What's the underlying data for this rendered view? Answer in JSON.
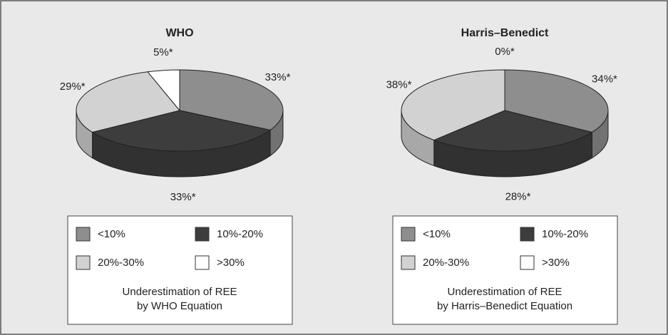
{
  "chart_data": [
    {
      "type": "pie",
      "title": "WHO",
      "categories": [
        "<10%",
        "10%-20%",
        "20%-30%",
        ">30%"
      ],
      "values": [
        33,
        33,
        29,
        5
      ],
      "value_labels": [
        "33%*",
        "33%*",
        "29%*",
        "5%*"
      ],
      "colors": [
        "#8e8e8e",
        "#3d3d3d",
        "#d2d2d2",
        "#ffffff"
      ],
      "caption": [
        "Underestimation of REE",
        "by WHO Equation"
      ]
    },
    {
      "type": "pie",
      "title": "Harris–Benedict",
      "categories": [
        "<10%",
        "10%-20%",
        "20%-30%",
        ">30%"
      ],
      "values": [
        34,
        28,
        38,
        0
      ],
      "value_labels": [
        "34%*",
        "28%*",
        "38%*",
        "0%*"
      ],
      "colors": [
        "#8e8e8e",
        "#3d3d3d",
        "#d2d2d2",
        "#ffffff"
      ],
      "caption": [
        "Underestimation of REE",
        "by Harris–Benedict Equation"
      ]
    }
  ]
}
